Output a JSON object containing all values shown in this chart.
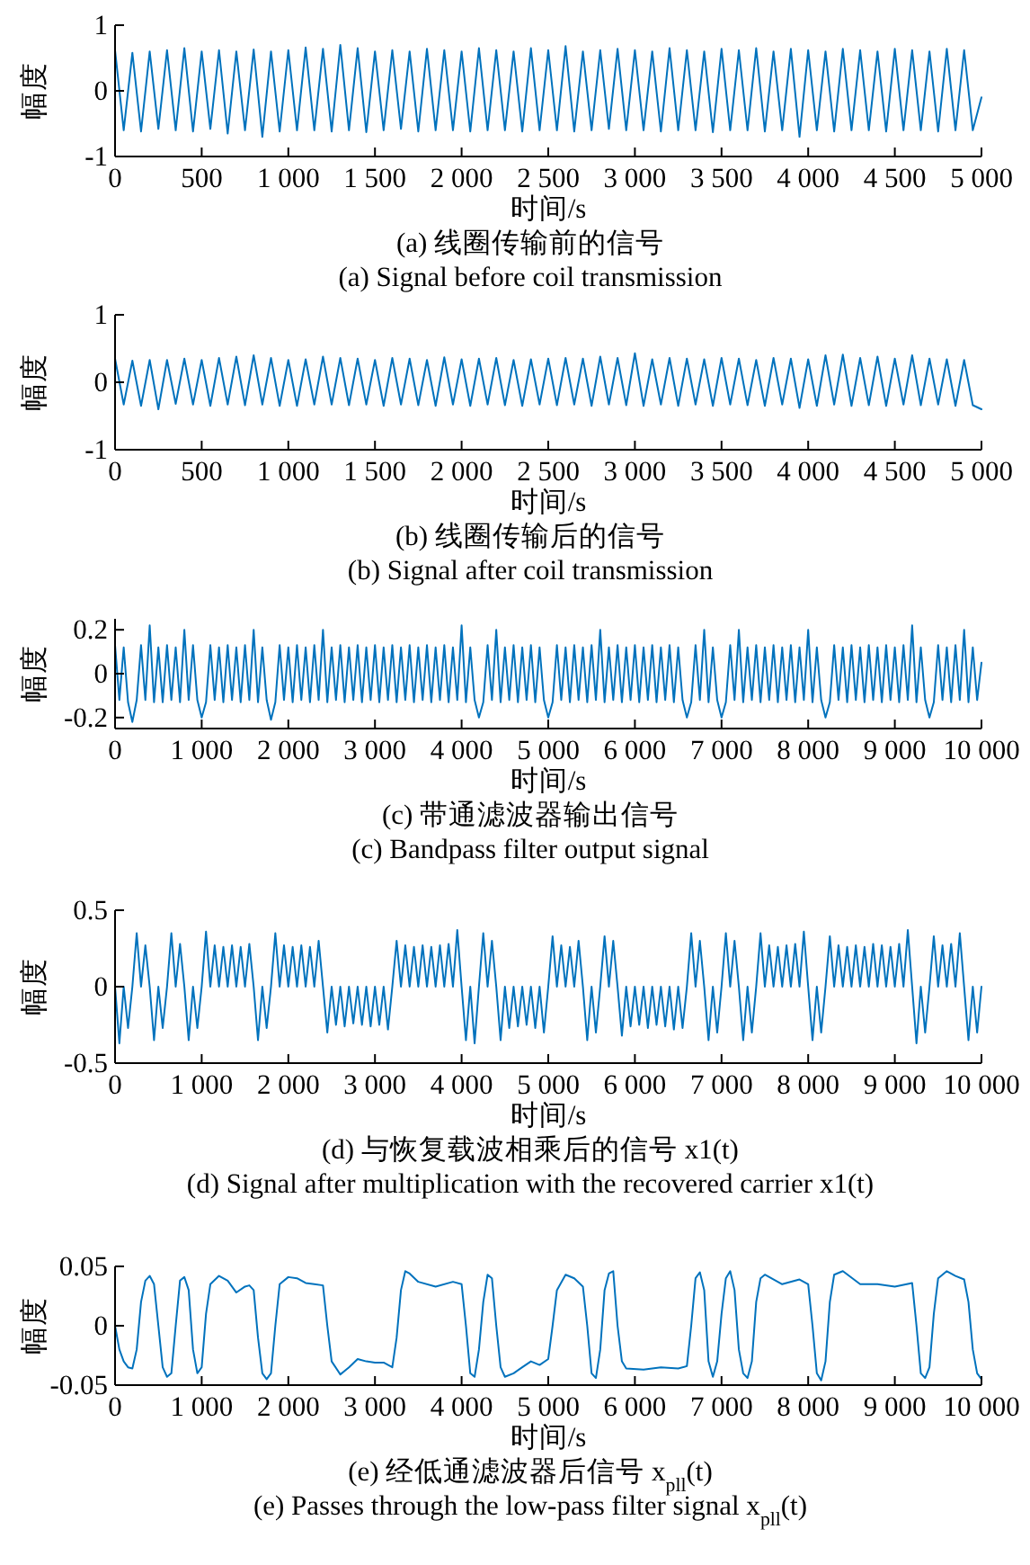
{
  "chart_data": [
    {
      "type": "line",
      "xlabel": "时间/s",
      "ylabel": "幅度",
      "annotations": [
        "(a) 线圈传输前的信号",
        "(a) Signal before coil transmission"
      ],
      "xlim": [
        0,
        5000
      ],
      "ylim": [
        -1,
        1
      ],
      "xticks": [
        {
          "value": 0,
          "label": "0"
        },
        {
          "value": 500,
          "label": "500"
        },
        {
          "value": 1000,
          "label": "1 000"
        },
        {
          "value": 1500,
          "label": "1 500"
        },
        {
          "value": 2000,
          "label": "2 000"
        },
        {
          "value": 2500,
          "label": "2 500"
        },
        {
          "value": 3000,
          "label": "3 000"
        },
        {
          "value": 3500,
          "label": "3 500"
        },
        {
          "value": 4000,
          "label": "4 000"
        },
        {
          "value": 4500,
          "label": "4 500"
        },
        {
          "value": 5000,
          "label": "5 000"
        }
      ],
      "yticks": [
        -1,
        0,
        1
      ],
      "series": [
        {
          "color": "#0072bd",
          "x": [
            0,
            50,
            100,
            150,
            200,
            250,
            300,
            350,
            400,
            450,
            500,
            550,
            600,
            650,
            700,
            750,
            800,
            850,
            900,
            950,
            1000,
            1050,
            1100,
            1150,
            1200,
            1250,
            1300,
            1350,
            1400,
            1450,
            1500,
            1550,
            1600,
            1650,
            1700,
            1750,
            1800,
            1850,
            1900,
            1950,
            2000,
            2050,
            2100,
            2150,
            2200,
            2250,
            2300,
            2350,
            2400,
            2450,
            2500,
            2550,
            2600,
            2650,
            2700,
            2750,
            2800,
            2850,
            2900,
            2950,
            3000,
            3050,
            3100,
            3150,
            3200,
            3250,
            3300,
            3350,
            3400,
            3450,
            3500,
            3550,
            3600,
            3650,
            3700,
            3750,
            3800,
            3850,
            3900,
            3950,
            4000,
            4050,
            4100,
            4150,
            4200,
            4250,
            4300,
            4350,
            4400,
            4450,
            4500,
            4550,
            4600,
            4650,
            4700,
            4750,
            4800,
            4850,
            4900,
            4950,
            5000
          ],
          "values": [
            0.62,
            -0.6,
            0.58,
            -0.62,
            0.6,
            -0.58,
            0.62,
            -0.6,
            0.65,
            -0.62,
            0.6,
            -0.58,
            0.62,
            -0.65,
            0.6,
            -0.6,
            0.63,
            -0.7,
            0.6,
            -0.62,
            0.62,
            -0.6,
            0.66,
            -0.6,
            0.64,
            -0.62,
            0.7,
            -0.6,
            0.65,
            -0.63,
            0.6,
            -0.6,
            0.62,
            -0.58,
            0.6,
            -0.62,
            0.64,
            -0.6,
            0.62,
            -0.6,
            0.6,
            -0.62,
            0.65,
            -0.6,
            0.62,
            -0.6,
            0.6,
            -0.62,
            0.65,
            -0.6,
            0.62,
            -0.6,
            0.68,
            -0.62,
            0.6,
            -0.6,
            0.62,
            -0.58,
            0.64,
            -0.6,
            0.62,
            -0.6,
            0.6,
            -0.62,
            0.65,
            -0.6,
            0.62,
            -0.6,
            0.6,
            -0.63,
            0.64,
            -0.6,
            0.62,
            -0.6,
            0.65,
            -0.62,
            0.6,
            -0.6,
            0.64,
            -0.7,
            0.62,
            -0.6,
            0.6,
            -0.62,
            0.64,
            -0.6,
            0.62,
            -0.6,
            0.6,
            -0.62,
            0.64,
            -0.6,
            0.62,
            -0.6,
            0.6,
            -0.62,
            0.64,
            -0.6,
            0.62,
            -0.6,
            -0.1
          ]
        }
      ]
    },
    {
      "type": "line",
      "xlabel": "时间/s",
      "ylabel": "幅度",
      "annotations": [
        "(b) 线圈传输后的信号",
        "(b) Signal after coil transmission"
      ],
      "xlim": [
        0,
        5000
      ],
      "ylim": [
        -1,
        1
      ],
      "xticks": [
        {
          "value": 0,
          "label": "0"
        },
        {
          "value": 500,
          "label": "500"
        },
        {
          "value": 1000,
          "label": "1 000"
        },
        {
          "value": 1500,
          "label": "1 500"
        },
        {
          "value": 2000,
          "label": "2 000"
        },
        {
          "value": 2500,
          "label": "2 500"
        },
        {
          "value": 3000,
          "label": "3 000"
        },
        {
          "value": 3500,
          "label": "3 500"
        },
        {
          "value": 4000,
          "label": "4 000"
        },
        {
          "value": 4500,
          "label": "4 500"
        },
        {
          "value": 5000,
          "label": "5 000"
        }
      ],
      "yticks": [
        -1,
        0,
        1
      ],
      "series": [
        {
          "color": "#0072bd",
          "x": [
            0,
            50,
            100,
            150,
            200,
            250,
            300,
            350,
            400,
            450,
            500,
            550,
            600,
            650,
            700,
            750,
            800,
            850,
            900,
            950,
            1000,
            1050,
            1100,
            1150,
            1200,
            1250,
            1300,
            1350,
            1400,
            1450,
            1500,
            1550,
            1600,
            1650,
            1700,
            1750,
            1800,
            1850,
            1900,
            1950,
            2000,
            2050,
            2100,
            2150,
            2200,
            2250,
            2300,
            2350,
            2400,
            2450,
            2500,
            2550,
            2600,
            2650,
            2700,
            2750,
            2800,
            2850,
            2900,
            2950,
            3000,
            3050,
            3100,
            3150,
            3200,
            3250,
            3300,
            3350,
            3400,
            3450,
            3500,
            3550,
            3600,
            3650,
            3700,
            3750,
            3800,
            3850,
            3900,
            3950,
            4000,
            4050,
            4100,
            4150,
            4200,
            4250,
            4300,
            4350,
            4400,
            4450,
            4500,
            4550,
            4600,
            4650,
            4700,
            4750,
            4800,
            4850,
            4900,
            4950,
            5000
          ],
          "values": [
            0.35,
            -0.33,
            0.32,
            -0.35,
            0.33,
            -0.4,
            0.33,
            -0.32,
            0.35,
            -0.33,
            0.33,
            -0.35,
            0.36,
            -0.33,
            0.38,
            -0.34,
            0.4,
            -0.33,
            0.36,
            -0.35,
            0.33,
            -0.35,
            0.34,
            -0.33,
            0.38,
            -0.33,
            0.36,
            -0.34,
            0.35,
            -0.33,
            0.33,
            -0.35,
            0.36,
            -0.33,
            0.35,
            -0.34,
            0.33,
            -0.35,
            0.37,
            -0.33,
            0.34,
            -0.35,
            0.35,
            -0.33,
            0.36,
            -0.34,
            0.33,
            -0.35,
            0.34,
            -0.33,
            0.35,
            -0.34,
            0.36,
            -0.33,
            0.35,
            -0.35,
            0.38,
            -0.33,
            0.36,
            -0.34,
            0.43,
            -0.35,
            0.34,
            -0.33,
            0.36,
            -0.35,
            0.35,
            -0.33,
            0.34,
            -0.35,
            0.36,
            -0.33,
            0.35,
            -0.34,
            0.33,
            -0.35,
            0.36,
            -0.33,
            0.35,
            -0.38,
            0.34,
            -0.35,
            0.4,
            -0.33,
            0.41,
            -0.35,
            0.36,
            -0.34,
            0.38,
            -0.35,
            0.35,
            -0.33,
            0.4,
            -0.34,
            0.35,
            -0.33,
            0.34,
            -0.35,
            0.33,
            -0.34,
            -0.4
          ]
        }
      ]
    },
    {
      "type": "line",
      "xlabel": "时间/s",
      "ylabel": "幅度",
      "annotations": [
        "(c) 带通滤波器输出信号",
        "(c) Bandpass filter output signal"
      ],
      "xlim": [
        0,
        10000
      ],
      "ylim": [
        -0.25,
        0.25
      ],
      "xticks": [
        {
          "value": 0,
          "label": "0"
        },
        {
          "value": 1000,
          "label": "1 000"
        },
        {
          "value": 2000,
          "label": "2 000"
        },
        {
          "value": 3000,
          "label": "3 000"
        },
        {
          "value": 4000,
          "label": "4 000"
        },
        {
          "value": 5000,
          "label": "5 000"
        },
        {
          "value": 6000,
          "label": "6 000"
        },
        {
          "value": 7000,
          "label": "7 000"
        },
        {
          "value": 8000,
          "label": "8 000"
        },
        {
          "value": 9000,
          "label": "9 000"
        },
        {
          "value": 10000,
          "label": "10 000"
        }
      ],
      "yticks": [
        -0.2,
        0,
        0.2
      ],
      "series": [
        {
          "color": "#0072bd",
          "x": [
            0,
            50,
            100,
            150,
            200,
            250,
            300,
            350,
            400,
            450,
            500,
            550,
            600,
            650,
            700,
            750,
            800,
            850,
            900,
            950,
            1000,
            1050,
            1100,
            1150,
            1200,
            1250,
            1300,
            1350,
            1400,
            1450,
            1500,
            1550,
            1600,
            1650,
            1700,
            1750,
            1800,
            1850,
            1900,
            1950,
            2000,
            2050,
            2100,
            2150,
            2200,
            2250,
            2300,
            2350,
            2400,
            2450,
            2500,
            2550,
            2600,
            2650,
            2700,
            2750,
            2800,
            2850,
            2900,
            2950,
            3000,
            3050,
            3100,
            3150,
            3200,
            3250,
            3300,
            3350,
            3400,
            3450,
            3500,
            3550,
            3600,
            3650,
            3700,
            3750,
            3800,
            3850,
            3900,
            3950,
            4000,
            4050,
            4100,
            4150,
            4200,
            4250,
            4300,
            4350,
            4400,
            4450,
            4500,
            4550,
            4600,
            4650,
            4700,
            4750,
            4800,
            4850,
            4900,
            4950,
            5000,
            5050,
            5100,
            5150,
            5200,
            5250,
            5300,
            5350,
            5400,
            5450,
            5500,
            5550,
            5600,
            5650,
            5700,
            5750,
            5800,
            5850,
            5900,
            5950,
            6000,
            6050,
            6100,
            6150,
            6200,
            6250,
            6300,
            6350,
            6400,
            6450,
            6500,
            6550,
            6600,
            6650,
            6700,
            6750,
            6800,
            6850,
            6900,
            6950,
            7000,
            7050,
            7100,
            7150,
            7200,
            7250,
            7300,
            7350,
            7400,
            7450,
            7500,
            7550,
            7600,
            7650,
            7700,
            7750,
            7800,
            7850,
            7900,
            7950,
            8000,
            8050,
            8100,
            8150,
            8200,
            8250,
            8300,
            8350,
            8400,
            8450,
            8500,
            8550,
            8600,
            8650,
            8700,
            8750,
            8800,
            8850,
            8900,
            8950,
            9000,
            9050,
            9100,
            9150,
            9200,
            9250,
            9300,
            9350,
            9400,
            9450,
            9500,
            9550,
            9600,
            9650,
            9700,
            9750,
            9800,
            9850,
            9900,
            9950,
            10000
          ],
          "values": [
            0.13,
            -0.12,
            0.12,
            -0.13,
            -0.22,
            -0.12,
            0.13,
            -0.12,
            0.22,
            -0.13,
            0.12,
            -0.13,
            0.13,
            -0.12,
            0.12,
            -0.13,
            0.2,
            -0.12,
            0.13,
            -0.12,
            -0.2,
            -0.13,
            0.13,
            -0.12,
            0.12,
            -0.13,
            0.13,
            -0.12,
            0.12,
            -0.13,
            0.13,
            -0.12,
            0.2,
            -0.13,
            0.12,
            -0.12,
            -0.21,
            -0.13,
            0.13,
            -0.12,
            0.12,
            -0.13,
            0.13,
            -0.12,
            0.12,
            -0.13,
            0.13,
            -0.12,
            0.2,
            -0.13,
            0.12,
            -0.12,
            0.13,
            -0.13,
            0.12,
            -0.12,
            0.13,
            -0.13,
            0.12,
            -0.12,
            0.13,
            -0.13,
            0.12,
            -0.12,
            0.13,
            -0.13,
            0.12,
            -0.12,
            0.13,
            -0.13,
            0.12,
            -0.12,
            0.13,
            -0.13,
            0.12,
            -0.12,
            0.13,
            -0.13,
            0.12,
            -0.12,
            0.22,
            -0.13,
            0.12,
            -0.12,
            -0.2,
            -0.13,
            0.13,
            -0.12,
            0.2,
            -0.13,
            0.12,
            -0.12,
            0.13,
            -0.13,
            0.12,
            -0.12,
            0.13,
            -0.13,
            0.12,
            -0.12,
            -0.2,
            -0.13,
            0.13,
            -0.12,
            0.12,
            -0.13,
            0.13,
            -0.12,
            0.12,
            -0.13,
            0.13,
            -0.12,
            0.2,
            -0.13,
            0.12,
            -0.12,
            0.13,
            -0.13,
            0.12,
            -0.12,
            0.13,
            -0.13,
            0.12,
            -0.12,
            0.13,
            -0.13,
            0.12,
            -0.12,
            0.13,
            -0.13,
            0.12,
            -0.12,
            -0.2,
            -0.13,
            0.13,
            -0.12,
            0.2,
            -0.13,
            0.12,
            -0.12,
            -0.2,
            -0.13,
            0.13,
            -0.12,
            0.2,
            -0.13,
            0.12,
            -0.12,
            0.13,
            -0.13,
            0.12,
            -0.12,
            0.13,
            -0.13,
            0.12,
            -0.12,
            0.13,
            -0.13,
            0.12,
            -0.12,
            0.2,
            -0.13,
            0.12,
            -0.12,
            -0.2,
            -0.13,
            0.13,
            -0.12,
            0.12,
            -0.13,
            0.13,
            -0.12,
            0.12,
            -0.13,
            0.13,
            -0.12,
            0.12,
            -0.13,
            0.13,
            -0.12,
            0.12,
            -0.13,
            0.13,
            -0.12,
            0.22,
            -0.13,
            0.12,
            -0.12,
            -0.2,
            -0.13,
            0.13,
            -0.12,
            0.12,
            -0.13,
            0.13,
            -0.12,
            0.2,
            -0.13,
            0.12,
            -0.12,
            0.05
          ]
        }
      ]
    },
    {
      "type": "line",
      "xlabel": "时间/s",
      "ylabel": "幅度",
      "annotations": [
        "(d) 与恢复载波相乘后的信号 x1(t)",
        "(d) Signal after multiplication with the recovered carrier x1(t)"
      ],
      "xlim": [
        0,
        10000
      ],
      "ylim": [
        -0.5,
        0.5
      ],
      "xticks": [
        {
          "value": 0,
          "label": "0"
        },
        {
          "value": 1000,
          "label": "1 000"
        },
        {
          "value": 2000,
          "label": "2 000"
        },
        {
          "value": 3000,
          "label": "3 000"
        },
        {
          "value": 4000,
          "label": "4 000"
        },
        {
          "value": 5000,
          "label": "5 000"
        },
        {
          "value": 6000,
          "label": "6 000"
        },
        {
          "value": 7000,
          "label": "7 000"
        },
        {
          "value": 8000,
          "label": "8 000"
        },
        {
          "value": 9000,
          "label": "9 000"
        },
        {
          "value": 10000,
          "label": "10 000"
        }
      ],
      "yticks": [
        -0.5,
        0,
        0.5
      ],
      "series": [
        {
          "color": "#0072bd",
          "x": [
            0,
            50,
            100,
            150,
            200,
            250,
            300,
            350,
            400,
            450,
            500,
            550,
            600,
            650,
            700,
            750,
            800,
            850,
            900,
            950,
            1000,
            1050,
            1100,
            1150,
            1200,
            1250,
            1300,
            1350,
            1400,
            1450,
            1500,
            1550,
            1600,
            1650,
            1700,
            1750,
            1800,
            1850,
            1900,
            1950,
            2000,
            2050,
            2100,
            2150,
            2200,
            2250,
            2300,
            2350,
            2400,
            2450,
            2500,
            2550,
            2600,
            2650,
            2700,
            2750,
            2800,
            2850,
            2900,
            2950,
            3000,
            3050,
            3100,
            3150,
            3200,
            3250,
            3300,
            3350,
            3400,
            3450,
            3500,
            3550,
            3600,
            3650,
            3700,
            3750,
            3800,
            3850,
            3900,
            3950,
            4000,
            4050,
            4100,
            4150,
            4200,
            4250,
            4300,
            4350,
            4400,
            4450,
            4500,
            4550,
            4600,
            4650,
            4700,
            4750,
            4800,
            4850,
            4900,
            4950,
            5000,
            5050,
            5100,
            5150,
            5200,
            5250,
            5300,
            5350,
            5400,
            5450,
            5500,
            5550,
            5600,
            5650,
            5700,
            5750,
            5800,
            5850,
            5900,
            5950,
            6000,
            6050,
            6100,
            6150,
            6200,
            6250,
            6300,
            6350,
            6400,
            6450,
            6500,
            6550,
            6600,
            6650,
            6700,
            6750,
            6800,
            6850,
            6900,
            6950,
            7000,
            7050,
            7100,
            7150,
            7200,
            7250,
            7300,
            7350,
            7400,
            7450,
            7500,
            7550,
            7600,
            7650,
            7700,
            7750,
            7800,
            7850,
            7900,
            7950,
            8000,
            8050,
            8100,
            8150,
            8200,
            8250,
            8300,
            8350,
            8400,
            8450,
            8500,
            8550,
            8600,
            8650,
            8700,
            8750,
            8800,
            8850,
            8900,
            8950,
            9000,
            9050,
            9100,
            9150,
            9200,
            9250,
            9300,
            9350,
            9400,
            9450,
            9500,
            9550,
            9600,
            9650,
            9700,
            9750,
            9800,
            9850,
            9900,
            9950,
            10000
          ],
          "values": [
            0,
            -0.37,
            0,
            -0.27,
            0,
            0.35,
            0,
            0.27,
            0,
            -0.35,
            0,
            -0.27,
            0,
            0.35,
            0,
            0.28,
            0,
            -0.35,
            0,
            -0.27,
            0,
            0.36,
            0,
            0.27,
            0,
            0.26,
            0,
            0.27,
            0,
            0.26,
            0,
            0.28,
            0,
            -0.35,
            0,
            -0.27,
            0,
            0.35,
            0,
            0.27,
            0,
            0.26,
            0,
            0.27,
            0,
            0.26,
            0,
            0.3,
            0,
            -0.3,
            0,
            -0.25,
            0,
            -0.26,
            0,
            -0.24,
            0,
            -0.25,
            0,
            -0.26,
            0,
            -0.25,
            0,
            -0.28,
            0,
            0.3,
            0,
            0.27,
            0,
            0.26,
            0,
            0.27,
            0,
            0.26,
            0,
            0.27,
            0,
            0.28,
            0,
            0.37,
            0,
            -0.35,
            0,
            -0.37,
            0,
            0.35,
            0,
            0.3,
            0,
            -0.35,
            0,
            -0.27,
            0,
            -0.26,
            0,
            -0.25,
            0,
            -0.27,
            0,
            -0.3,
            0,
            0.33,
            0,
            0.27,
            0,
            0.26,
            0,
            0.3,
            0,
            -0.35,
            0,
            -0.3,
            0,
            0.33,
            0,
            0.3,
            0,
            -0.32,
            0,
            -0.26,
            0,
            -0.25,
            0,
            -0.27,
            0,
            -0.25,
            0,
            -0.26,
            0,
            -0.28,
            0,
            -0.27,
            0,
            0.35,
            0,
            0.3,
            0,
            -0.35,
            0,
            -0.3,
            0,
            0.35,
            0,
            0.3,
            0,
            -0.35,
            0,
            -0.3,
            0,
            0.35,
            0,
            0.27,
            0,
            0.26,
            0,
            0.27,
            0,
            0.28,
            0,
            0.36,
            0,
            -0.35,
            0,
            -0.3,
            0,
            0.33,
            0,
            0.27,
            0,
            0.26,
            0,
            0.27,
            0,
            0.26,
            0,
            0.28,
            0,
            0.27,
            0,
            0.26,
            0,
            0.28,
            0,
            0.37,
            0,
            -0.37,
            0,
            -0.3,
            0,
            0.33,
            0,
            0.27,
            0,
            0.28,
            0,
            0.35,
            0,
            -0.35,
            0,
            -0.3,
            0
          ]
        }
      ]
    },
    {
      "type": "line",
      "xlabel": "时间/s",
      "ylabel": "幅度",
      "annotations": [
        "(e) 经低通滤波器后信号 x$_{pll}$(t)",
        "(e)  Passes through the low-pass filter signal x$_{pll}$(t)"
      ],
      "xlim": [
        0,
        10000
      ],
      "ylim": [
        -0.05,
        0.05
      ],
      "xticks": [
        {
          "value": 0,
          "label": "0"
        },
        {
          "value": 1000,
          "label": "1 000"
        },
        {
          "value": 2000,
          "label": "2 000"
        },
        {
          "value": 3000,
          "label": "3 000"
        },
        {
          "value": 4000,
          "label": "4 000"
        },
        {
          "value": 5000,
          "label": "5 000"
        },
        {
          "value": 6000,
          "label": "6 000"
        },
        {
          "value": 7000,
          "label": "7 000"
        },
        {
          "value": 8000,
          "label": "8 000"
        },
        {
          "value": 9000,
          "label": "9 000"
        },
        {
          "value": 10000,
          "label": "10 000"
        }
      ],
      "yticks": [
        -0.05,
        0,
        0.05
      ],
      "series": [
        {
          "color": "#0072bd",
          "x": [
            0,
            50,
            100,
            150,
            200,
            250,
            300,
            350,
            400,
            450,
            500,
            550,
            600,
            650,
            700,
            750,
            800,
            850,
            900,
            950,
            1000,
            1050,
            1100,
            1200,
            1300,
            1400,
            1500,
            1550,
            1600,
            1650,
            1700,
            1750,
            1800,
            1850,
            1900,
            2000,
            2100,
            2200,
            2300,
            2400,
            2450,
            2500,
            2600,
            2700,
            2800,
            2900,
            3000,
            3100,
            3200,
            3250,
            3300,
            3350,
            3400,
            3500,
            3700,
            3900,
            4000,
            4050,
            4100,
            4150,
            4200,
            4250,
            4300,
            4350,
            4400,
            4450,
            4500,
            4600,
            4700,
            4800,
            4900,
            5000,
            5050,
            5100,
            5200,
            5300,
            5400,
            5450,
            5500,
            5550,
            5600,
            5650,
            5700,
            5750,
            5800,
            5850,
            5900,
            6100,
            6300,
            6500,
            6600,
            6650,
            6700,
            6750,
            6800,
            6850,
            6900,
            6950,
            7000,
            7050,
            7100,
            7150,
            7200,
            7250,
            7300,
            7350,
            7400,
            7450,
            7500,
            7700,
            7900,
            8000,
            8050,
            8100,
            8150,
            8200,
            8250,
            8300,
            8400,
            8600,
            8800,
            9000,
            9200,
            9250,
            9300,
            9350,
            9400,
            9450,
            9500,
            9600,
            9700,
            9800,
            9850,
            9900,
            9950,
            10000
          ],
          "values": [
            0,
            -0.02,
            -0.03,
            -0.035,
            -0.036,
            -0.02,
            0.02,
            0.038,
            0.042,
            0.035,
            0,
            -0.035,
            -0.043,
            -0.04,
            0,
            0.038,
            0.041,
            0.03,
            -0.02,
            -0.04,
            -0.035,
            0.01,
            0.035,
            0.042,
            0.038,
            0.028,
            0.033,
            0.034,
            0.03,
            -0.01,
            -0.04,
            -0.045,
            -0.04,
            0,
            0.035,
            0.041,
            0.04,
            0.036,
            0.035,
            0.034,
            0,
            -0.03,
            -0.041,
            -0.035,
            -0.028,
            -0.03,
            -0.031,
            -0.031,
            -0.035,
            -0.01,
            0.03,
            0.046,
            0.044,
            0.037,
            0.033,
            0.037,
            0.035,
            0,
            -0.04,
            -0.043,
            -0.02,
            0.02,
            0.043,
            0.04,
            0,
            -0.035,
            -0.043,
            -0.04,
            -0.035,
            -0.03,
            -0.033,
            -0.028,
            0,
            0.03,
            0.043,
            0.04,
            0.033,
            0,
            -0.04,
            -0.044,
            -0.02,
            0.03,
            0.044,
            0.046,
            0,
            -0.03,
            -0.036,
            -0.037,
            -0.035,
            -0.036,
            -0.034,
            0,
            0.04,
            0.045,
            0.03,
            -0.03,
            -0.043,
            -0.03,
            0.01,
            0.04,
            0.046,
            0.03,
            -0.02,
            -0.04,
            -0.044,
            -0.03,
            0.02,
            0.04,
            0.043,
            0.035,
            0.039,
            0.035,
            0,
            -0.04,
            -0.046,
            -0.03,
            0.02,
            0.043,
            0.046,
            0.035,
            0.035,
            0.033,
            0.036,
            0,
            -0.04,
            -0.044,
            -0.035,
            0.01,
            0.04,
            0.046,
            0.042,
            0.039,
            0.02,
            -0.02,
            -0.04,
            -0.045
          ]
        }
      ]
    }
  ]
}
